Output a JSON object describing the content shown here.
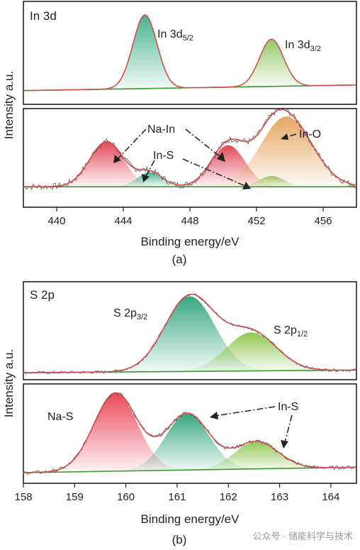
{
  "colors": {
    "envelope": "#d05050",
    "background_line": "#3a9a2a",
    "raw_data": "#555555",
    "na_in": "#e04050",
    "in_s_3d": "#3cb08a",
    "in_o": "#e2a25a",
    "in_s_small": "#8cc860",
    "s_2p32": "#2fa37a",
    "s_2p12": "#8cc44a",
    "na_s": "#e84050",
    "in_s_2p_main": "#2fa37a",
    "in_s_2p_side": "#8cc44a"
  },
  "figure": {
    "caption_a": "(a)",
    "caption_b": "(b)",
    "watermark": "公众号 · 储能科学与技术"
  },
  "chart_data": [
    {
      "type": "area",
      "panel": "a",
      "panel_label": "In 3d",
      "xlabel": "Binding energy/eV",
      "ylabel": "Intensity a.u.",
      "xlim": [
        438,
        458
      ],
      "xticks": [
        440,
        444,
        448,
        452,
        456
      ],
      "grid": false,
      "top": {
        "baseline_left": 0.1,
        "baseline_right": 0.16,
        "peaks": [
          {
            "label_main": "In 3d",
            "label_sub": "5/2",
            "center": 445.3,
            "fwhm": 1.7,
            "height": 0.78,
            "color_key": "in_s_3d"
          },
          {
            "label_main": "In 3d",
            "label_sub": "3/2",
            "center": 452.9,
            "fwhm": 1.7,
            "height": 0.5,
            "color_key": "in_s_small"
          }
        ]
      },
      "bottom": {
        "baseline_left": 0.18,
        "baseline_right": 0.18,
        "peaks": [
          {
            "name": "Na-In",
            "center": 443.0,
            "fwhm": 2.4,
            "height": 0.5,
            "color_key": "na_in"
          },
          {
            "name": "In-S",
            "center": 445.6,
            "fwhm": 1.8,
            "height": 0.16,
            "color_key": "in_s_3d"
          },
          {
            "name": "Na-In",
            "center": 450.3,
            "fwhm": 2.4,
            "height": 0.46,
            "color_key": "na_in"
          },
          {
            "name": "In-S",
            "center": 452.9,
            "fwhm": 1.8,
            "height": 0.12,
            "color_key": "in_s_small"
          },
          {
            "name": "In-O",
            "center": 453.8,
            "fwhm": 3.6,
            "height": 0.78,
            "color_key": "in_o"
          }
        ],
        "annotations": [
          "Na-In",
          "In-S",
          "In-O"
        ]
      }
    },
    {
      "type": "area",
      "panel": "b",
      "panel_label": "S 2p",
      "xlabel": "Binding energy/eV",
      "ylabel": "Intensity a.u.",
      "xlim": [
        158,
        164.5
      ],
      "xticks": [
        158,
        159,
        160,
        161,
        162,
        163,
        164
      ],
      "grid": false,
      "top": {
        "baseline_left": 0.03,
        "baseline_right": 0.06,
        "peaks": [
          {
            "label_main": "S 2p",
            "label_sub": "3/2",
            "center": 161.25,
            "fwhm": 1.15,
            "height": 0.84,
            "color_key": "s_2p32"
          },
          {
            "label_main": "S 2p",
            "label_sub": "1/2",
            "center": 162.45,
            "fwhm": 1.15,
            "height": 0.43,
            "color_key": "s_2p12"
          }
        ]
      },
      "bottom": {
        "baseline_left": 0.07,
        "baseline_right": 0.13,
        "peaks": [
          {
            "name": "Na-S",
            "center": 159.8,
            "fwhm": 1.0,
            "height": 0.86,
            "color_key": "na_s"
          },
          {
            "name": "In-S",
            "center": 161.2,
            "fwhm": 1.0,
            "height": 0.62,
            "color_key": "in_s_2p_main"
          },
          {
            "name": "In-S",
            "center": 162.55,
            "fwhm": 1.0,
            "height": 0.3,
            "color_key": "in_s_2p_side"
          }
        ],
        "annotations": [
          "Na-S",
          "In-S"
        ]
      }
    }
  ]
}
